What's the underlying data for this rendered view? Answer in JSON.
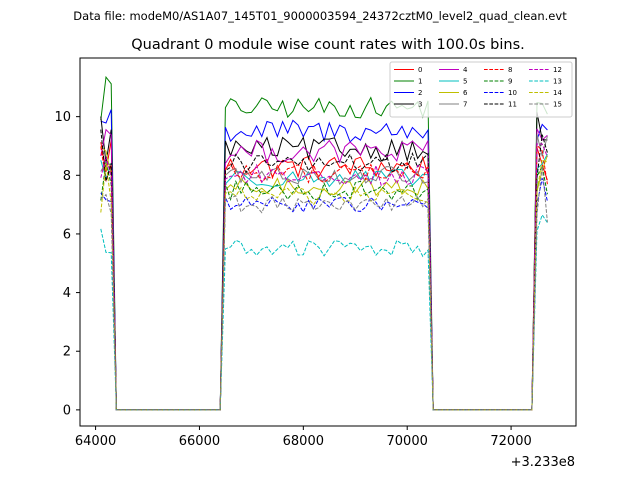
{
  "suptitle": "Data file: modeM0/AS1A07_145T01_9000003594_24372cztM0_level2_quad_clean.evt",
  "chart_data": {
    "type": "line",
    "title": "Quadrant 0 module wise count rates with 100.0s bins.",
    "xlabel": "",
    "ylabel": "",
    "x_offset_label": "+3.233e8",
    "xlim": [
      63700,
      73250
    ],
    "ylim": [
      -0.55,
      12.0
    ],
    "x_ticks": [
      64000,
      66000,
      68000,
      70000,
      72000
    ],
    "x_tick_labels": [
      "64000",
      "66000",
      "68000",
      "70000",
      "72000"
    ],
    "y_ticks": [
      0,
      2,
      4,
      6,
      8,
      10
    ],
    "y_tick_labels": [
      "0",
      "2",
      "4",
      "6",
      "8",
      "10"
    ],
    "grid": false,
    "legend_position": "top-right",
    "segments": [
      {
        "start": 64100,
        "end": 64300
      },
      {
        "start": 66500,
        "end": 70400
      },
      {
        "start": 72450,
        "end": 72750
      }
    ],
    "series": [
      {
        "name": "0",
        "color": "#ff0000",
        "dash": "solid",
        "level": 8.3,
        "spread": 0.4
      },
      {
        "name": "1",
        "color": "#008000",
        "dash": "solid",
        "level": 10.3,
        "spread": 0.35
      },
      {
        "name": "2",
        "color": "#0000ff",
        "dash": "solid",
        "level": 9.5,
        "spread": 0.4
      },
      {
        "name": "3",
        "color": "#000000",
        "dash": "solid",
        "level": 8.9,
        "spread": 0.4
      },
      {
        "name": "4",
        "color": "#bf00bf",
        "dash": "solid",
        "level": 8.8,
        "spread": 0.4
      },
      {
        "name": "5",
        "color": "#00bfbf",
        "dash": "solid",
        "level": 7.9,
        "spread": 0.3
      },
      {
        "name": "6",
        "color": "#bfbf00",
        "dash": "solid",
        "level": 7.6,
        "spread": 0.3
      },
      {
        "name": "7",
        "color": "#808080",
        "dash": "solid",
        "level": 8.0,
        "spread": 0.3
      },
      {
        "name": "8",
        "color": "#ff0000",
        "dash": "dashed",
        "level": 8.1,
        "spread": 0.35
      },
      {
        "name": "9",
        "color": "#008000",
        "dash": "dashed",
        "level": 7.5,
        "spread": 0.35
      },
      {
        "name": "10",
        "color": "#0000ff",
        "dash": "dashed",
        "level": 7.0,
        "spread": 0.25
      },
      {
        "name": "11",
        "color": "#000000",
        "dash": "dashed",
        "level": 8.4,
        "spread": 0.35
      },
      {
        "name": "12",
        "color": "#bf00bf",
        "dash": "dashed",
        "level": 8.0,
        "spread": 0.35
      },
      {
        "name": "13",
        "color": "#00bfbf",
        "dash": "dashed",
        "level": 5.5,
        "spread": 0.3
      },
      {
        "name": "14",
        "color": "#bfbf00",
        "dash": "dashed",
        "level": 7.3,
        "spread": 0.3
      },
      {
        "name": "15",
        "color": "#808080",
        "dash": "dashed",
        "level": 7.0,
        "spread": 0.3
      }
    ]
  }
}
